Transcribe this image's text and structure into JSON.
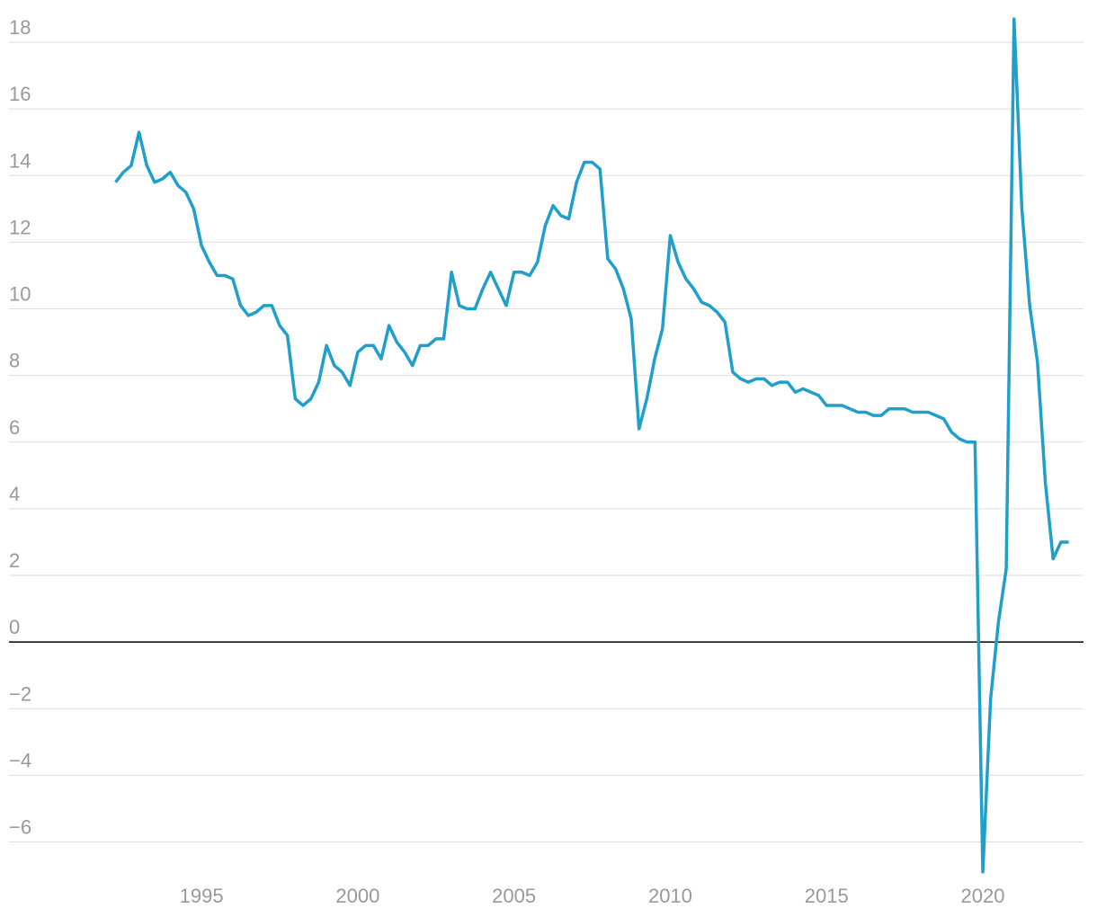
{
  "chart_data": {
    "type": "line",
    "x": [
      1992.25,
      1992.5,
      1992.75,
      1993,
      1993.25,
      1993.5,
      1993.75,
      1994,
      1994.25,
      1994.5,
      1994.75,
      1995,
      1995.25,
      1995.5,
      1995.75,
      1996,
      1996.25,
      1996.5,
      1996.75,
      1997,
      1997.25,
      1997.5,
      1997.75,
      1998,
      1998.25,
      1998.5,
      1998.75,
      1999,
      1999.25,
      1999.5,
      1999.75,
      2000,
      2000.25,
      2000.5,
      2000.75,
      2001,
      2001.25,
      2001.5,
      2001.75,
      2002,
      2002.25,
      2002.5,
      2002.75,
      2003,
      2003.25,
      2003.5,
      2003.75,
      2004,
      2004.25,
      2004.5,
      2004.75,
      2005,
      2005.25,
      2005.5,
      2005.75,
      2006,
      2006.25,
      2006.5,
      2006.75,
      2007,
      2007.25,
      2007.5,
      2007.75,
      2008,
      2008.25,
      2008.5,
      2008.75,
      2009,
      2009.25,
      2009.5,
      2009.75,
      2010,
      2010.25,
      2010.5,
      2010.75,
      2011,
      2011.25,
      2011.5,
      2011.75,
      2012,
      2012.25,
      2012.5,
      2012.75,
      2013,
      2013.25,
      2013.5,
      2013.75,
      2014,
      2014.25,
      2014.5,
      2014.75,
      2015,
      2015.25,
      2015.5,
      2015.75,
      2016,
      2016.25,
      2016.5,
      2016.75,
      2017,
      2017.25,
      2017.5,
      2017.75,
      2018,
      2018.25,
      2018.5,
      2018.75,
      2019,
      2019.25,
      2019.5,
      2019.75,
      2020,
      2020.25,
      2020.5,
      2020.75,
      2021,
      2021.25,
      2021.5,
      2021.75,
      2022,
      2022.25,
      2022.5,
      2022.75
    ],
    "series": [
      {
        "color": "#1f9fcb",
        "values": [
          13.8,
          14.1,
          14.3,
          15.3,
          14.3,
          13.8,
          13.9,
          14.1,
          13.7,
          13.5,
          13.0,
          11.9,
          11.4,
          11.0,
          11.0,
          10.9,
          10.1,
          9.8,
          9.9,
          10.1,
          10.1,
          9.5,
          9.2,
          7.3,
          7.1,
          7.3,
          7.8,
          8.9,
          8.3,
          8.1,
          7.7,
          8.7,
          8.9,
          8.9,
          8.5,
          9.5,
          9.0,
          8.7,
          8.3,
          8.9,
          8.9,
          9.1,
          9.1,
          11.1,
          10.1,
          10.0,
          10.0,
          10.6,
          11.1,
          10.6,
          10.1,
          11.1,
          11.1,
          11.0,
          11.4,
          12.5,
          13.1,
          12.8,
          12.7,
          13.8,
          14.4,
          14.4,
          14.2,
          11.5,
          11.2,
          10.6,
          9.7,
          6.4,
          7.3,
          8.5,
          9.4,
          12.2,
          11.4,
          10.9,
          10.6,
          10.2,
          10.1,
          9.9,
          9.6,
          8.1,
          7.9,
          7.8,
          7.9,
          7.9,
          7.7,
          7.8,
          7.8,
          7.5,
          7.6,
          7.5,
          7.4,
          7.1,
          7.1,
          7.1,
          7.0,
          6.9,
          6.9,
          6.8,
          6.8,
          7.0,
          7.0,
          7.0,
          6.9,
          6.9,
          6.9,
          6.8,
          6.7,
          6.3,
          6.1,
          6.0,
          6.0,
          -6.9,
          -1.7,
          0.6,
          2.2,
          18.7,
          13.0,
          10.1,
          8.4,
          4.8,
          2.5,
          3.0,
          3.0
        ]
      }
    ],
    "xlim": [
      1988.84,
      2023.28
    ],
    "xticks": [
      1995,
      2000,
      2005,
      2010,
      2015,
      2020
    ],
    "ylim": [
      -7,
      19
    ],
    "yticks": [
      {
        "value": -6,
        "label": "−6"
      },
      {
        "value": -4,
        "label": "−4"
      },
      {
        "value": -2,
        "label": "−2"
      },
      0,
      2,
      4,
      6,
      8,
      10,
      12,
      14,
      16,
      18
    ],
    "grid": true
  }
}
